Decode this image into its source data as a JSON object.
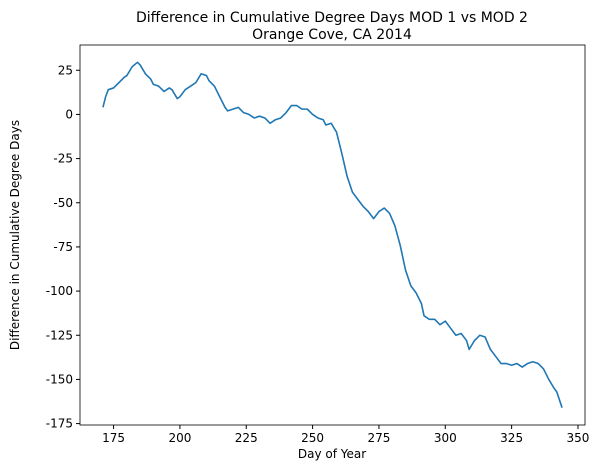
{
  "chart_data": {
    "type": "line",
    "title": "Difference in Cumulative Degree Days MOD 1 vs MOD 2",
    "subtitle": "Orange Cove, CA 2014",
    "xlabel": "Day of Year",
    "ylabel": "Difference in Cumulative Degree Days",
    "x": [
      171,
      172,
      173,
      175,
      177,
      179,
      180,
      182,
      184,
      185,
      187,
      189,
      190,
      192,
      194,
      196,
      197,
      199,
      200,
      202,
      204,
      206,
      208,
      210,
      211,
      213,
      215,
      217,
      218,
      220,
      222,
      224,
      226,
      228,
      230,
      232,
      234,
      236,
      238,
      240,
      242,
      244,
      246,
      248,
      250,
      252,
      254,
      255,
      257,
      259,
      261,
      263,
      265,
      267,
      269,
      271,
      273,
      275,
      277,
      279,
      281,
      283,
      285,
      287,
      289,
      291,
      292,
      294,
      296,
      298,
      300,
      302,
      304,
      306,
      308,
      309,
      311,
      313,
      315,
      317,
      319,
      321,
      323,
      325,
      327,
      329,
      331,
      333,
      335,
      337,
      339,
      341,
      342,
      344
    ],
    "series": [
      {
        "name": "difference",
        "color": "#1f77b4",
        "values": [
          4,
          10,
          14,
          15,
          18,
          21,
          22,
          27,
          29.5,
          28,
          23,
          20,
          17,
          16,
          13,
          15,
          14,
          9,
          10,
          14,
          16,
          18,
          23,
          22,
          19,
          16,
          10,
          4,
          2,
          3,
          4,
          1,
          0,
          -2,
          -1,
          -2,
          -5,
          -3,
          -2,
          1,
          5,
          5,
          3,
          3,
          0,
          -2,
          -3,
          -6,
          -5,
          -10,
          -22,
          -35,
          -44,
          -48,
          -52,
          -55,
          -59,
          -55,
          -53,
          -56,
          -63,
          -74,
          -88,
          -97,
          -101,
          -107,
          -114,
          -116,
          -116,
          -119,
          -117,
          -121,
          -125,
          -124,
          -128,
          -133,
          -128,
          -125,
          -126,
          -133,
          -137,
          -141,
          -141,
          -142,
          -141,
          -143,
          -141,
          -140,
          -141,
          -144,
          -150,
          -155,
          -157,
          -166
        ]
      }
    ],
    "xlim": [
      162.35,
      352.65
    ],
    "xticks": [
      175,
      200,
      225,
      250,
      275,
      300,
      325,
      350
    ],
    "ylim": [
      -175.8,
      39.3
    ],
    "yticks": [
      25,
      0,
      -25,
      -50,
      -75,
      -100,
      -125,
      -150,
      -175
    ],
    "grid": false
  }
}
